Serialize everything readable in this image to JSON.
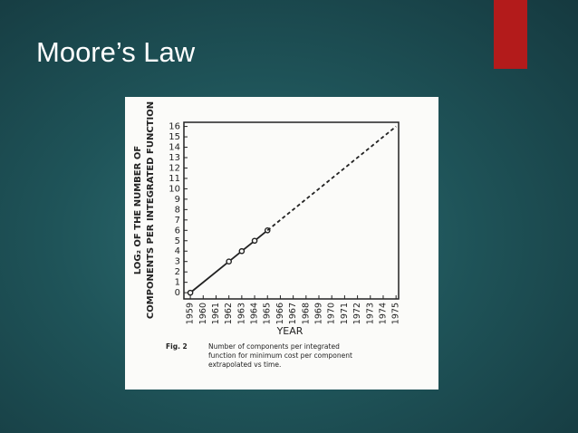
{
  "slide_title": "Moore’s Law",
  "chart_data": {
    "type": "line",
    "ylabel": [
      "LOG₂ OF THE NUMBER OF",
      "COMPONENTS PER INTEGRATED FUNCTION"
    ],
    "xlabel": "YEAR",
    "caption": {
      "figure": "Fig. 2",
      "lines": [
        "Number of components per integrated",
        "function for minimum cost per component",
        "extrapolated vs time."
      ]
    },
    "series": [
      {
        "style": "solid",
        "markers": true,
        "color": "#222222",
        "x": [
          1959,
          1962,
          1963,
          1964,
          1965
        ],
        "values": [
          0,
          3,
          4,
          5,
          6
        ]
      },
      {
        "style": "dashed",
        "markers": false,
        "color": "#222222",
        "x": [
          1965,
          1975
        ],
        "values": [
          6,
          16
        ]
      }
    ],
    "xlim": [
      1958.5,
      1975.2
    ],
    "ylim": [
      -0.6,
      16.4
    ],
    "xticks": [
      1959,
      1960,
      1961,
      1962,
      1963,
      1964,
      1965,
      1966,
      1967,
      1968,
      1969,
      1970,
      1971,
      1972,
      1973,
      1974,
      1975
    ],
    "yticks": [
      0,
      1,
      2,
      3,
      4,
      5,
      6,
      7,
      8,
      9,
      10,
      11,
      12,
      13,
      14,
      15,
      16
    ]
  }
}
